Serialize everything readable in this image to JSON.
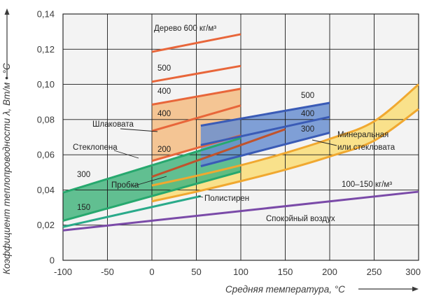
{
  "chart_data": {
    "type": "line",
    "xlabel": "Средняя температура, °С",
    "ylabel": "Коэффициент теплопроводности λ, Вт/м • °С",
    "xlim": [
      -100,
      300
    ],
    "ylim": [
      0,
      0.14
    ],
    "x_ticks": [
      "-100",
      "-50",
      "0",
      "50",
      "100",
      "150",
      "200",
      "250",
      "300"
    ],
    "y_ticks": [
      "0",
      "0,02",
      "0,04",
      "0,06",
      "0,08",
      "0,10",
      "0,12",
      "0,14"
    ],
    "grid": true,
    "colors": {
      "background": "#f3f3f3",
      "grid": "#1a1a1a",
      "wood": "#e8663a",
      "wood_fill": "#f3c28e",
      "slag_wool": "#c0532c",
      "foam_glass": "#27a86e",
      "foam_glass_fill": "#47b57f",
      "cork": "#44a060",
      "mineral_wool": "#f0a830",
      "mineral_wool_fill": "#f9df80",
      "blue": "#3a5bb6",
      "blue_fill": "#6a8fd0",
      "polystyrene": "#2aaa8a",
      "air": "#7a4aa8"
    },
    "lines": [
      {
        "x": [
          0,
          100
        ],
        "y": [
          0.1185,
          0.1285
        ],
        "color_key": "wood"
      },
      {
        "x": [
          0,
          100
        ],
        "y": [
          0.1015,
          0.1105
        ],
        "color_key": "wood"
      },
      {
        "x": [
          0,
          100
        ],
        "y": [
          0.0885,
          0.0975
        ],
        "color_key": "wood"
      },
      {
        "x": [
          0,
          100
        ],
        "y": [
          0.0735,
          0.088
        ],
        "color_key": "wood"
      },
      {
        "x": [
          0,
          100
        ],
        "y": [
          0.0565,
          0.071
        ],
        "color_key": "wood"
      },
      {
        "x": [
          0,
          150
        ],
        "y": [
          0.0475,
          0.0745
        ],
        "color_key": "slag_wool"
      },
      {
        "x": [
          -100,
          100
        ],
        "y": [
          0.0385,
          0.0695
        ],
        "color_key": "foam_glass"
      },
      {
        "x": [
          -100,
          100
        ],
        "y": [
          0.0225,
          0.0505
        ],
        "color_key": "foam_glass"
      },
      {
        "x": [
          -100,
          55
        ],
        "y": [
          0.019,
          0.0365
        ],
        "color_key": "polystyrene"
      },
      {
        "x": [
          -100,
          300
        ],
        "y": [
          0.017,
          0.039
        ],
        "color_key": "air"
      },
      {
        "x": [
          55,
          200
        ],
        "y": [
          0.0765,
          0.0895
        ],
        "color_key": "blue"
      },
      {
        "x": [
          55,
          200
        ],
        "y": [
          0.0655,
          0.0815
        ],
        "color_key": "blue"
      },
      {
        "x": [
          55,
          200
        ],
        "y": [
          0.0535,
          0.0725
        ],
        "color_key": "blue"
      }
    ],
    "curves": [
      {
        "x": [
          0,
          50,
          100,
          150,
          200,
          250,
          300
        ],
        "y": [
          0.0425,
          0.048,
          0.054,
          0.061,
          0.069,
          0.079,
          0.1
        ],
        "color_key": "mineral_wool"
      },
      {
        "x": [
          0,
          50,
          100,
          150,
          200,
          250,
          300
        ],
        "y": [
          0.0335,
          0.039,
          0.045,
          0.0515,
          0.059,
          0.068,
          0.086
        ],
        "color_key": "mineral_wool"
      }
    ],
    "labels": {
      "wood": "Дерево 600 кг/м³",
      "wood_500": "500",
      "wood_400a": "400",
      "wood_400b": "400",
      "wood_200": "200",
      "slag": "Шлаковата",
      "foam": "Стеклопена",
      "foam_300": "300",
      "foam_150": "150",
      "cork": "Пробка",
      "polystyrene": "Полистирен",
      "air": "Спокойный воздух",
      "mineral_1": "Минеральная",
      "mineral_2": "или стекловата",
      "mineral_density": "100–150 кг/м³",
      "blue_500": "500",
      "blue_400": "400",
      "blue_300": "300"
    }
  }
}
